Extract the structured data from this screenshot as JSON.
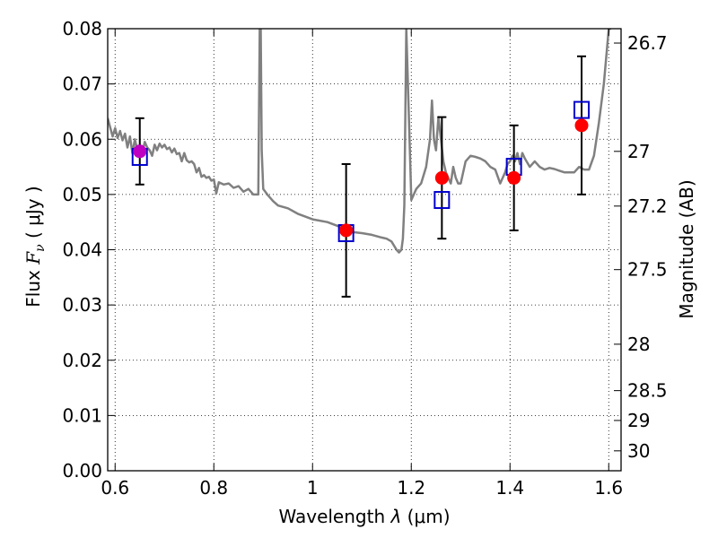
{
  "chart_data": {
    "type": "scatter",
    "title": "",
    "xlabel": "Wavelength  λ (μm)",
    "ylabel": "Flux  F_ν ( μJy )",
    "ylabel_parts": {
      "pre": "Flux  ",
      "symbol": "F",
      "sub": "ν",
      "post": " (  μJy )"
    },
    "xlabel_parts": {
      "pre": "Wavelength  ",
      "sym": "λ",
      "post": " (μm)"
    },
    "y2label": "Magnitude (AB)",
    "xlim": [
      0.585,
      1.625
    ],
    "ylim": [
      0.0,
      0.08
    ],
    "grid": true,
    "x_ticks": [
      {
        "value": 0.6,
        "label": "0.6"
      },
      {
        "value": 0.8,
        "label": "0.8"
      },
      {
        "value": 1.0,
        "label": "1"
      },
      {
        "value": 1.2,
        "label": "1.2"
      },
      {
        "value": 1.4,
        "label": "1.4"
      },
      {
        "value": 1.6,
        "label": "1.6"
      }
    ],
    "y_ticks": [
      {
        "value": 0.0,
        "label": "0.00"
      },
      {
        "value": 0.01,
        "label": "0.01"
      },
      {
        "value": 0.02,
        "label": "0.02"
      },
      {
        "value": 0.03,
        "label": "0.03"
      },
      {
        "value": 0.04,
        "label": "0.04"
      },
      {
        "value": 0.05,
        "label": "0.05"
      },
      {
        "value": 0.06,
        "label": "0.06"
      },
      {
        "value": 0.07,
        "label": "0.07"
      },
      {
        "value": 0.08,
        "label": "0.08"
      }
    ],
    "y2_ticks": [
      {
        "label": "26.7",
        "flux": 0.0774
      },
      {
        "label": "27",
        "flux": 0.0578
      },
      {
        "label": "27.2",
        "flux": 0.0479
      },
      {
        "label": "27.5",
        "flux": 0.0364
      },
      {
        "label": "28",
        "flux": 0.0229
      },
      {
        "label": "28.5",
        "flux": 0.0145
      },
      {
        "label": "29",
        "flux": 0.0091
      },
      {
        "label": "30",
        "flux": 0.0036
      }
    ],
    "series": [
      {
        "kind": "line",
        "color": "#808080",
        "x": [
          0.585,
          0.595,
          0.6,
          0.605,
          0.61,
          0.615,
          0.62,
          0.625,
          0.63,
          0.635,
          0.64,
          0.645,
          0.65,
          0.655,
          0.66,
          0.665,
          0.67,
          0.675,
          0.68,
          0.685,
          0.69,
          0.695,
          0.7,
          0.705,
          0.71,
          0.715,
          0.72,
          0.725,
          0.73,
          0.735,
          0.74,
          0.745,
          0.75,
          0.755,
          0.76,
          0.765,
          0.77,
          0.775,
          0.78,
          0.785,
          0.79,
          0.795,
          0.8,
          0.805,
          0.81,
          0.82,
          0.83,
          0.84,
          0.85,
          0.86,
          0.87,
          0.88,
          0.89,
          0.893,
          0.895,
          0.897,
          0.9,
          0.91,
          0.92,
          0.93,
          0.95,
          0.97,
          1.0,
          1.03,
          1.06,
          1.08,
          1.1,
          1.12,
          1.14,
          1.15,
          1.16,
          1.17,
          1.175,
          1.18,
          1.183,
          1.186,
          1.19,
          1.2,
          1.21,
          1.22,
          1.23,
          1.238,
          1.242,
          1.246,
          1.25,
          1.255,
          1.26,
          1.265,
          1.27,
          1.275,
          1.28,
          1.285,
          1.29,
          1.295,
          1.3,
          1.31,
          1.32,
          1.33,
          1.34,
          1.35,
          1.36,
          1.37,
          1.38,
          1.39,
          1.395,
          1.4,
          1.405,
          1.41,
          1.415,
          1.42,
          1.425,
          1.43,
          1.44,
          1.45,
          1.46,
          1.47,
          1.48,
          1.49,
          1.5,
          1.51,
          1.52,
          1.53,
          1.54,
          1.55,
          1.56,
          1.57,
          1.58,
          1.59,
          1.6,
          1.605
        ],
        "y": [
          0.0638,
          0.0605,
          0.062,
          0.0602,
          0.0615,
          0.0598,
          0.061,
          0.0585,
          0.0605,
          0.0575,
          0.06,
          0.058,
          0.059,
          0.0575,
          0.0595,
          0.0585,
          0.058,
          0.057,
          0.059,
          0.058,
          0.0592,
          0.0585,
          0.059,
          0.0582,
          0.0585,
          0.0576,
          0.0583,
          0.0573,
          0.0575,
          0.056,
          0.0575,
          0.0562,
          0.0558,
          0.056,
          0.0555,
          0.054,
          0.0548,
          0.0532,
          0.0535,
          0.053,
          0.0532,
          0.0525,
          0.0527,
          0.0502,
          0.0522,
          0.0518,
          0.052,
          0.0512,
          0.0515,
          0.0505,
          0.051,
          0.05,
          0.05,
          0.08,
          0.08,
          0.058,
          0.051,
          0.0498,
          0.0488,
          0.048,
          0.0475,
          0.0465,
          0.0455,
          0.045,
          0.044,
          0.0432,
          0.043,
          0.0427,
          0.0422,
          0.042,
          0.0415,
          0.04,
          0.0395,
          0.04,
          0.042,
          0.048,
          0.08,
          0.049,
          0.051,
          0.052,
          0.055,
          0.06,
          0.067,
          0.06,
          0.058,
          0.064,
          0.06,
          0.056,
          0.054,
          0.053,
          0.052,
          0.055,
          0.053,
          0.052,
          0.052,
          0.056,
          0.057,
          0.0568,
          0.0565,
          0.056,
          0.055,
          0.0545,
          0.052,
          0.054,
          0.0555,
          0.056,
          0.057,
          0.056,
          0.0575,
          0.0555,
          0.0575,
          0.0565,
          0.055,
          0.056,
          0.055,
          0.0545,
          0.0548,
          0.0546,
          0.0543,
          0.054,
          0.054,
          0.054,
          0.055,
          0.0545,
          0.0545,
          0.057,
          0.063,
          0.07,
          0.08,
          0.08
        ]
      },
      {
        "kind": "squares",
        "color": "#0000cc",
        "x": [
          0.65,
          1.068,
          1.262,
          1.408,
          1.545
        ],
        "y": [
          0.0568,
          0.043,
          0.049,
          0.055,
          0.0653
        ]
      },
      {
        "kind": "points",
        "color": "#ff0000",
        "x": [
          0.65,
          1.068,
          1.262,
          1.408,
          1.545
        ],
        "y": [
          0.0578,
          0.0435,
          0.053,
          0.053,
          0.0625
        ],
        "colors": [
          "#c000c0",
          "#ff0000",
          "#ff0000",
          "#ff0000",
          "#ff0000"
        ],
        "err": [
          0.006,
          0.012,
          0.011,
          0.0095,
          0.0125
        ]
      }
    ]
  }
}
